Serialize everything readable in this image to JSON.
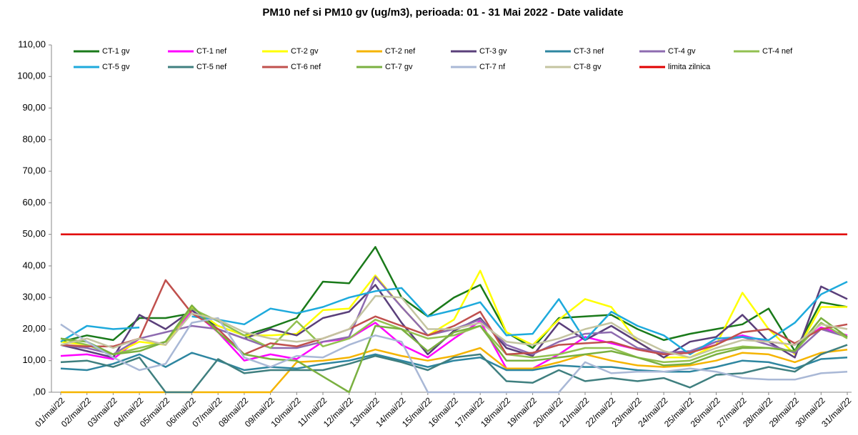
{
  "chart_data": {
    "type": "line",
    "title": "PM10 nef si PM10 gv (ug/m3), perioada: 01 - 31 Mai 2022 - Date validate",
    "categories": [
      "01/mai/22",
      "02/mai/22",
      "03/mai/22",
      "04/mai/22",
      "05/mai/22",
      "06/mai/22",
      "07/mai/22",
      "08/mai/22",
      "09/mai/22",
      "10/mai/22",
      "11/mai/22",
      "12/mai/22",
      "13/mai/22",
      "14/mai/22",
      "15/mai/22",
      "16/mai/22",
      "17/mai/22",
      "18/mai/22",
      "19/mai/22",
      "20/mai/22",
      "21/mai/22",
      "22/mai/22",
      "23/mai/22",
      "24/mai/22",
      "25/mai/22",
      "26/mai/22",
      "27/mai/22",
      "28/mai/22",
      "29/mai/22",
      "30/mai/22",
      "31/mai/22"
    ],
    "ylim": [
      0,
      110
    ],
    "yticks": [
      {
        "value": 0,
        "label": ",00"
      },
      {
        "value": 10,
        "label": "10,00"
      },
      {
        "value": 20,
        "label": "20,00"
      },
      {
        "value": 30,
        "label": "30,00"
      },
      {
        "value": 40,
        "label": "40,00"
      },
      {
        "value": 50,
        "label": "50,00"
      },
      {
        "value": 60,
        "label": "60,00"
      },
      {
        "value": 70,
        "label": "70,00"
      },
      {
        "value": 80,
        "label": "80,00"
      },
      {
        "value": 90,
        "label": "90,00"
      },
      {
        "value": 100,
        "label": "100,00"
      },
      {
        "value": 110,
        "label": "110,00"
      }
    ],
    "grid": false,
    "legend": "top",
    "series": [
      {
        "name": "CT-1 gv",
        "color": "#1a7a1a",
        "values": [
          16,
          18,
          16.5,
          23.5,
          23.5,
          25,
          21,
          18,
          20.5,
          23.5,
          35,
          34.5,
          46,
          30,
          24,
          30,
          34,
          19,
          14,
          23.5,
          24,
          24.5,
          20,
          16.5,
          18.5,
          20,
          21.5,
          26.5,
          13,
          28.5,
          27
        ]
      },
      {
        "name": "CT-1 nef",
        "color": "#ff00ff",
        "values": [
          11.5,
          12,
          10.5,
          17,
          15,
          26,
          19,
          10,
          12,
          10.5,
          16,
          17,
          22,
          15,
          11,
          17,
          22.5,
          7.5,
          7.5,
          12,
          17.5,
          15.5,
          13.5,
          12,
          12.5,
          16,
          18,
          16,
          15,
          20.5,
          18
        ]
      },
      {
        "name": "CT-2 gv",
        "color": "#ffff00",
        "values": [
          16,
          15,
          12,
          16,
          15,
          27,
          21,
          18,
          18,
          18.5,
          26,
          26.5,
          37,
          27,
          18,
          23,
          38.5,
          19,
          15,
          23,
          29.5,
          27,
          16,
          11,
          11,
          15,
          31.5,
          20,
          12,
          27,
          27
        ]
      },
      {
        "name": "CT-2 nef",
        "color": "#f5b400",
        "values": [
          0,
          0,
          0,
          0,
          0,
          0,
          0,
          0,
          0,
          9.5,
          10,
          11,
          13.5,
          11.5,
          10,
          11.5,
          14,
          7.5,
          7.5,
          9.5,
          12,
          10,
          8.5,
          8,
          8.5,
          10,
          12.5,
          12,
          9.5,
          12.5,
          13.5
        ]
      },
      {
        "name": "CT-3 gv",
        "color": "#5a3f7a",
        "values": [
          15,
          13,
          11,
          24.5,
          20,
          26,
          20,
          17,
          20,
          18,
          23.5,
          25.5,
          34,
          22,
          12,
          19.5,
          23.5,
          14,
          11.5,
          22,
          16.5,
          21,
          16,
          11,
          16,
          17.5,
          24.5,
          16,
          11,
          33.5,
          29.5
        ]
      },
      {
        "name": "CT-3 nef",
        "color": "#2e86a0",
        "values": [
          7.5,
          7,
          9,
          12,
          8,
          12.5,
          10,
          7,
          8,
          7.5,
          9,
          10,
          12,
          10,
          8,
          10,
          11,
          7,
          7,
          8.5,
          8,
          8,
          7,
          6.5,
          6.5,
          8,
          10,
          9.5,
          7.5,
          10.5,
          11
        ]
      },
      {
        "name": "CT-4 gv",
        "color": "#8e6bb0",
        "values": [
          15,
          14,
          12,
          17,
          19,
          21,
          20,
          17,
          14,
          14,
          16,
          17.5,
          36.5,
          27,
          18,
          20,
          23,
          15,
          12,
          16,
          18.5,
          19,
          14,
          12.5,
          13,
          16,
          17.5,
          15,
          12.5,
          20,
          17.5
        ]
      },
      {
        "name": "CT-4 nef",
        "color": "#92c050",
        "values": [
          17,
          15,
          12,
          14,
          16,
          26.5,
          22.5,
          18,
          14,
          22.5,
          14.5,
          17,
          23,
          20,
          17,
          18,
          21,
          12,
          11,
          12,
          14,
          14,
          11,
          9.5,
          10,
          13,
          14.5,
          14,
          13,
          22,
          17
        ]
      },
      {
        "name": "CT-5 gv",
        "color": "#1eaadc",
        "values": [
          16,
          21,
          20,
          20.5,
          null,
          24,
          23,
          21.5,
          26.5,
          25,
          27,
          30,
          32,
          33,
          24,
          26,
          28.5,
          18,
          18.5,
          29.5,
          16.5,
          25.5,
          21,
          18,
          12,
          17,
          17.5,
          16.5,
          22,
          31,
          35
        ]
      },
      {
        "name": "CT-5 nef",
        "color": "#3f7f7f",
        "values": [
          9.5,
          10,
          8,
          11,
          0,
          0,
          10.5,
          6,
          7,
          7,
          7,
          9,
          11.5,
          9.5,
          7,
          11,
          12,
          3.5,
          3,
          7,
          3.5,
          4.5,
          3.5,
          4.5,
          1.5,
          5.5,
          6,
          8,
          6.5,
          12,
          15
        ]
      },
      {
        "name": "CT-6 nef",
        "color": "#c0504d",
        "values": [
          15,
          14.5,
          14.5,
          17,
          35.5,
          25,
          20,
          12,
          15.5,
          14.5,
          17,
          20,
          24,
          21,
          18,
          21,
          25.5,
          12,
          12.5,
          15,
          15.5,
          16,
          13.5,
          12,
          12.5,
          15,
          19,
          20,
          15.5,
          20,
          21.5
        ]
      },
      {
        "name": "CT-7 gv",
        "color": "#7ab040",
        "values": [
          17,
          16,
          12,
          13,
          16,
          27.5,
          19,
          12,
          10.5,
          10,
          5,
          0,
          21,
          20,
          13,
          19,
          21,
          10,
          10,
          11,
          12,
          13,
          11,
          8.5,
          9,
          12,
          14,
          14,
          13,
          23.5,
          17.5
        ]
      },
      {
        "name": "CT-7 nf",
        "color": "#a9b8d6",
        "values": [
          21.5,
          16,
          11,
          7,
          9,
          22,
          23.5,
          11,
          8,
          11.5,
          11,
          15,
          18,
          16,
          0,
          0,
          0,
          0,
          0,
          0,
          9.5,
          6,
          6.5,
          6.5,
          7.5,
          6.5,
          4.5,
          4,
          4,
          6,
          6.5
        ]
      },
      {
        "name": "CT-8 gv",
        "color": "#c4c4a0",
        "values": [
          15,
          17,
          14,
          17,
          15,
          25,
          23,
          19,
          17,
          16,
          17,
          20,
          30.5,
          30,
          20,
          20,
          22,
          16,
          15,
          17,
          20,
          22,
          17,
          13,
          11,
          14,
          16.5,
          16,
          15,
          21.5,
          20
        ]
      },
      {
        "name": "limita zilnica",
        "color": "#e00000",
        "values": [
          50,
          50,
          50,
          50,
          50,
          50,
          50,
          50,
          50,
          50,
          50,
          50,
          50,
          50,
          50,
          50,
          50,
          50,
          50,
          50,
          50,
          50,
          50,
          50,
          50,
          50,
          50,
          50,
          50,
          50,
          50
        ]
      }
    ]
  }
}
